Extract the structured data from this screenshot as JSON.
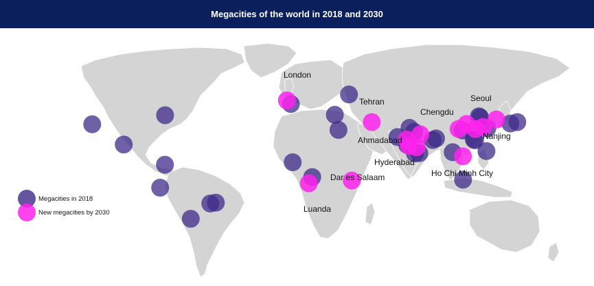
{
  "title": "Megacities of the world in 2018 and 2030",
  "legend": {
    "existing_label": "Megacities in 2018",
    "new_label": "New megacities by 2030"
  },
  "colors": {
    "header_bg": "#0a1f5c",
    "existing": "#3f2b8a",
    "new": "#ff22ee",
    "land": "#d4d4d4"
  },
  "city_labels": {
    "london": "London",
    "tehran": "Tehran",
    "seoul": "Seoul",
    "chengdu": "Chengdu",
    "nanjing": "Nanjing",
    "ahmadabad": "Ahmadabad",
    "hyderabad": "Hyderabad",
    "hcmc": "Ho Chi Minh City",
    "dar": "Dar es Salaam",
    "luanda": "Luanda"
  },
  "markers": [
    {
      "kind": "existing",
      "lon": -118.2,
      "lat": 34.1
    },
    {
      "kind": "existing",
      "lon": -74.0,
      "lat": 40.7
    },
    {
      "kind": "existing",
      "lon": -99.1,
      "lat": 19.4
    },
    {
      "kind": "existing",
      "lon": -74.1,
      "lat": 4.7
    },
    {
      "kind": "existing",
      "lon": -77.0,
      "lat": -12.0
    },
    {
      "kind": "existing",
      "lon": -46.6,
      "lat": -23.5
    },
    {
      "kind": "existing",
      "lon": -43.2,
      "lat": -22.9
    },
    {
      "kind": "existing",
      "lon": -58.4,
      "lat": -34.6
    },
    {
      "kind": "existing",
      "lon": 2.35,
      "lat": 48.9
    },
    {
      "kind": "existing",
      "lon": 37.6,
      "lat": 55.8
    },
    {
      "kind": "existing",
      "lon": 29.0,
      "lat": 41.0
    },
    {
      "kind": "existing",
      "lon": 31.2,
      "lat": 30.0
    },
    {
      "kind": "existing",
      "lon": 3.4,
      "lat": 6.5
    },
    {
      "kind": "existing",
      "lon": 15.3,
      "lat": -4.3
    },
    {
      "kind": "existing",
      "lon": 67.0,
      "lat": 24.9
    },
    {
      "kind": "existing",
      "lon": 74.3,
      "lat": 31.5
    },
    {
      "kind": "existing",
      "lon": 77.2,
      "lat": 28.6
    },
    {
      "kind": "existing",
      "lon": 72.9,
      "lat": 19.1
    },
    {
      "kind": "existing",
      "lon": 77.6,
      "lat": 12.97
    },
    {
      "kind": "existing",
      "lon": 80.3,
      "lat": 13.1
    },
    {
      "kind": "existing",
      "lon": 88.4,
      "lat": 22.6
    },
    {
      "kind": "existing",
      "lon": 90.4,
      "lat": 23.8
    },
    {
      "kind": "existing",
      "lon": 116.4,
      "lat": 39.9
    },
    {
      "kind": "existing",
      "lon": 117.2,
      "lat": 39.1
    },
    {
      "kind": "existing",
      "lon": 121.5,
      "lat": 31.2
    },
    {
      "kind": "existing",
      "lon": 106.6,
      "lat": 29.6
    },
    {
      "kind": "existing",
      "lon": 113.3,
      "lat": 23.1
    },
    {
      "kind": "existing",
      "lon": 114.1,
      "lat": 22.5
    },
    {
      "kind": "existing",
      "lon": 139.7,
      "lat": 35.7
    },
    {
      "kind": "existing",
      "lon": 135.5,
      "lat": 34.7
    },
    {
      "kind": "existing",
      "lon": 121.0,
      "lat": 14.6
    },
    {
      "kind": "existing",
      "lon": 106.8,
      "lat": -6.2
    },
    {
      "kind": "existing",
      "lon": 100.5,
      "lat": 13.8
    },
    {
      "kind": "new",
      "lon": -0.1,
      "lat": 51.5
    },
    {
      "kind": "new",
      "lon": 51.4,
      "lat": 35.7
    },
    {
      "kind": "new",
      "lon": 126.98,
      "lat": 37.6
    },
    {
      "kind": "new",
      "lon": 104.1,
      "lat": 30.7
    },
    {
      "kind": "new",
      "lon": 118.8,
      "lat": 32.1
    },
    {
      "kind": "new",
      "lon": 72.6,
      "lat": 23.0
    },
    {
      "kind": "new",
      "lon": 78.5,
      "lat": 17.4
    },
    {
      "kind": "new",
      "lon": 106.7,
      "lat": 10.8
    },
    {
      "kind": "new",
      "lon": 39.3,
      "lat": -6.8
    },
    {
      "kind": "new",
      "lon": 13.2,
      "lat": -8.8
    },
    {
      "kind": "new",
      "lon": 114.3,
      "lat": 30.6
    },
    {
      "kind": "new",
      "lon": 108.9,
      "lat": 34.3
    },
    {
      "kind": "new",
      "lon": 73.9,
      "lat": 18.5
    },
    {
      "kind": "new",
      "lon": 80.9,
      "lat": 26.8
    }
  ]
}
